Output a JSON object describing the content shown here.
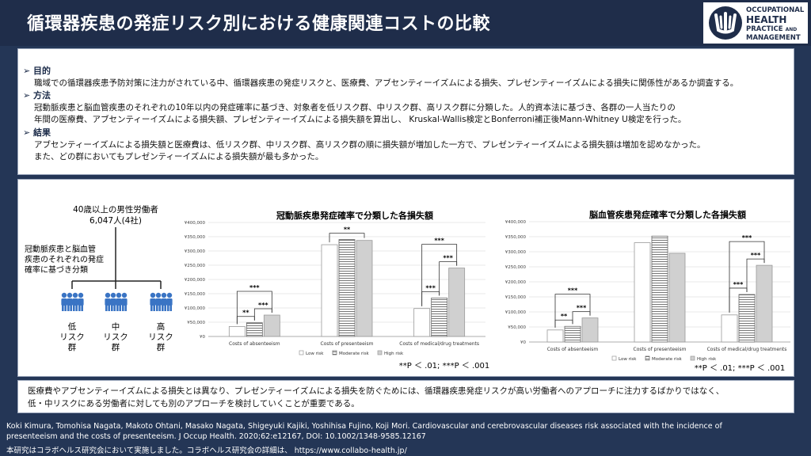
{
  "header": {
    "title": "循環器疾患の発症リスク別における健康関連コストの比較",
    "logo": {
      "line1": "OCCUPATIONAL",
      "line2": "HEALTH",
      "line3a": "PRACTICE",
      "line3b": "AND",
      "line4": "MANAGEMENT"
    }
  },
  "summary": {
    "purpose_heading": "➢ 目的",
    "purpose_text": "職域での循環器疾患予防対策に注力がされている中、循環器疾患の発症リスクと、医療費、アブセンティーイズムによる損失、プレゼンティーイズムによる損失に関係性があるか調査する。",
    "method_heading": "➢ 方法",
    "method_text_1": "冠動脈疾患と脳血管疾患のそれぞれの10年以内の発症確率に基づき、対象者を低リスク群、中リスク群、高リスク群に分類した。人的資本法に基づき、各群の一人当たりの",
    "method_text_2": "年間の医療費、アブセンティーイズムによる損失額、プレゼンティーイズムによる損失額を算出し、 Kruskal-Wallis検定とBonferroni補正後Mann-Whitney U検定を行った。",
    "result_heading": "➢ 結果",
    "result_text_1": "アブセンティーイズムによる損失額と医療費は、低リスク群、中リスク群、高リスク群の順に損失額が増加した一方で、プレゼンティーイズムによる損失額は増加を認めなかった。",
    "result_text_2": "また、どの群においてもプレゼンティーイズムによる損失額が最も多かった。"
  },
  "flow": {
    "population_1": "40歳以上の男性労働者",
    "population_2": "6,047人(4社)",
    "classify_1": "冠動脈疾患と脳血管",
    "classify_2": "疾患のそれぞれの発症",
    "classify_3": "確率に基づき分類",
    "groups": [
      {
        "line1": "低",
        "line2": "リスク",
        "line3": "群"
      },
      {
        "line1": "中",
        "line2": "リスク",
        "line3": "群"
      },
      {
        "line1": "高",
        "line2": "リスク",
        "line3": "群"
      }
    ]
  },
  "chart_data": [
    {
      "type": "bar",
      "title": "冠動脈疾患発症確率で分類した各損失額",
      "categories": [
        "Costs of absenteeism",
        "Costs of presenteeism",
        "Costs of medical/drug treatments"
      ],
      "series": [
        {
          "name": "Low risk",
          "values": [
            35000,
            322000,
            98000
          ]
        },
        {
          "name": "Moderate risk",
          "values": [
            48000,
            340000,
            135000
          ]
        },
        {
          "name": "High risk",
          "values": [
            75000,
            337000,
            240000
          ]
        }
      ],
      "ylim": [
        0,
        400000
      ],
      "yticks": [
        "¥0",
        "¥50,000",
        "¥100,000",
        "¥150,000",
        "¥200,000",
        "¥250,000",
        "¥300,000",
        "¥350,000",
        "¥400,000"
      ],
      "significance": [
        {
          "group": 0,
          "from": 0,
          "to": 2,
          "label": "***"
        },
        {
          "group": 0,
          "from": 0,
          "to": 1,
          "label": "**"
        },
        {
          "group": 0,
          "from": 1,
          "to": 2,
          "label": "***"
        },
        {
          "group": 1,
          "from": 0,
          "to": 2,
          "label": "**"
        },
        {
          "group": 2,
          "from": 0,
          "to": 2,
          "label": "***"
        },
        {
          "group": 2,
          "from": 0,
          "to": 1,
          "label": "***"
        },
        {
          "group": 2,
          "from": 1,
          "to": 2,
          "label": "***"
        }
      ],
      "note": "**P ＜ .01; ***P ＜ .001"
    },
    {
      "type": "bar",
      "title": "脳血管疾患発症確率で分類した各損失額",
      "categories": [
        "Costs of absenteeism",
        "Costs of presenteeism",
        "Costs of medical/drug treatments"
      ],
      "series": [
        {
          "name": "Low risk",
          "values": [
            40000,
            330000,
            90000
          ]
        },
        {
          "name": "Moderate risk",
          "values": [
            52000,
            352000,
            158000
          ]
        },
        {
          "name": "High risk",
          "values": [
            80000,
            295000,
            255000
          ]
        }
      ],
      "ylim": [
        0,
        400000
      ],
      "yticks": [
        "¥0",
        "¥50,000",
        "¥100,000",
        "¥150,000",
        "¥200,000",
        "¥250,000",
        "¥300,000",
        "¥350,000",
        "¥400,000"
      ],
      "significance": [
        {
          "group": 0,
          "from": 0,
          "to": 2,
          "label": "***"
        },
        {
          "group": 0,
          "from": 0,
          "to": 1,
          "label": "**"
        },
        {
          "group": 0,
          "from": 1,
          "to": 2,
          "label": "***"
        },
        {
          "group": 2,
          "from": 0,
          "to": 2,
          "label": "***"
        },
        {
          "group": 2,
          "from": 0,
          "to": 1,
          "label": "***"
        },
        {
          "group": 2,
          "from": 1,
          "to": 2,
          "label": "***"
        }
      ],
      "note": "**P ＜ .01; ***P ＜ .001"
    }
  ],
  "conclusion": {
    "line1": "医療費やアブセンティーイズムによる損失とは異なり、プレゼンティーイズムによる損失を防ぐためには、循環器疾患発症リスクが高い労働者へのアプローチに注力するばかりではなく、",
    "line2": "低・中リスクにある労働者に対しても別のアプローチを検討していくことが重要である。"
  },
  "citation": {
    "line1": "Koki Kimura,  Tomohisa Nagata,  Makoto Ohtani,  Masako Nagata,  Shigeyuki Kajiki,  Yoshihisa Fujino, Koji Mori. Cardiovascular and cerebrovascular diseases risk associated with the incidence of",
    "line2": "presenteeism and the costs of presenteeism. J Occup Health. 2020;62:e12167,   DOI: 10.1002/1348-9585.12167",
    "line3": "本研究はコラボヘルス研究会において実施しました。コラボヘルス研究会の詳細は、  https://www.collabo-health.jp/"
  }
}
